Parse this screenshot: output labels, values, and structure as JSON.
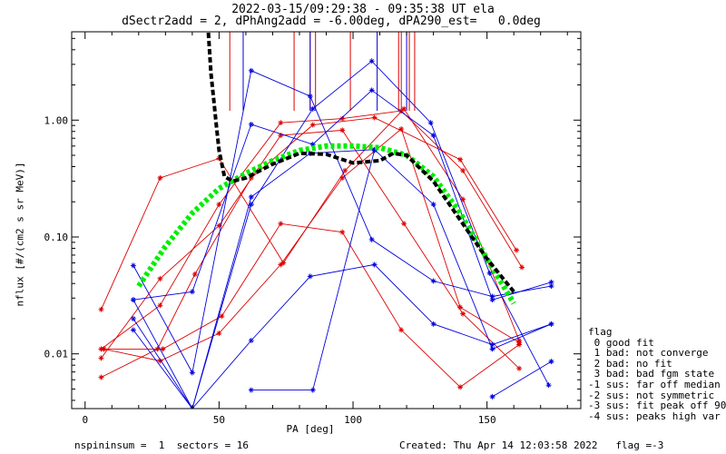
{
  "header": {
    "title_line1": "2022-03-15/09:29:38 - 09:35:38 UT ela",
    "title_line2": "dSectr2add = 2, dPhAng2add = -6.00deg, dPA290_est=   0.0deg"
  },
  "legend": {
    "title": "flag",
    "items": [
      " 0 good fit",
      " 1 bad: not converge",
      " 2 bad: no fit",
      " 3 bad: bad fgm state",
      "-1 sus: far off median",
      "-2 sus: not symmetric",
      "-3 sus: fit peak off 90",
      "-4 sus: peaks high var"
    ]
  },
  "footer": {
    "left": "nspininsum =  1  sectors = 16",
    "right": "Created: Thu Apr 14 12:03:58 2022   flag =-3"
  },
  "colors": {
    "red": "#dd0000",
    "blue": "#0000dd",
    "green": "#00ee00",
    "black": "#000000"
  },
  "chart_data": {
    "type": "line",
    "xlabel": "PA [deg]",
    "ylabel": "nflux [#/(cm2 s sr MeV)]",
    "xlim": [
      -5,
      185
    ],
    "ylim": [
      0.0034,
      5.7
    ],
    "yscale": "log",
    "xticks": [
      0,
      50,
      100,
      150
    ],
    "yticks": [
      0.01,
      0.1,
      1.0
    ],
    "ytick_labels": [
      "0.01",
      "0.10",
      "1.00"
    ],
    "red_vlines_x": [
      54,
      78,
      84,
      86,
      99,
      117,
      118,
      121,
      123
    ],
    "blue_vlines_x": [
      59,
      84,
      109,
      120
    ],
    "red_series": [
      {
        "x": [
          6,
          27,
          41,
          62,
          85,
          108,
          140,
          161
        ],
        "y": [
          0.0063,
          0.011,
          0.048,
          0.32,
          0.91,
          1.05,
          0.46,
          0.077
        ]
      },
      {
        "x": [
          6,
          28,
          50,
          73,
          96,
          118,
          141,
          163
        ],
        "y": [
          0.011,
          0.026,
          0.19,
          0.95,
          1.03,
          1.2,
          0.37,
          0.055
        ]
      },
      {
        "x": [
          6,
          28,
          50,
          74,
          97,
          119,
          141,
          162
        ],
        "y": [
          0.024,
          0.32,
          0.47,
          0.06,
          0.37,
          1.25,
          0.21,
          0.013
        ]
      },
      {
        "x": [
          6,
          28,
          50,
          73,
          96,
          119,
          141,
          162
        ],
        "y": [
          0.0092,
          0.044,
          0.125,
          0.74,
          0.82,
          0.13,
          0.022,
          0.0075
        ]
      },
      {
        "x": [
          7,
          28,
          50,
          73,
          96,
          118,
          140,
          162
        ],
        "y": [
          0.011,
          0.0087,
          0.015,
          0.058,
          0.32,
          0.84,
          0.025,
          0.0125
        ]
      },
      {
        "x": [
          7,
          29,
          51,
          73,
          96,
          118,
          140,
          162
        ],
        "y": [
          0.011,
          0.011,
          0.021,
          0.13,
          0.11,
          0.016,
          0.0052,
          0.012
        ]
      }
    ],
    "blue_series": [
      {
        "x": [
          18,
          40,
          62,
          84,
          107,
          130,
          152,
          174
        ],
        "y": [
          0.057,
          0.0069,
          2.65,
          1.6,
          0.095,
          0.042,
          0.031,
          0.038
        ]
      },
      {
        "x": [
          18,
          40,
          62,
          85,
          107,
          130,
          152,
          174
        ],
        "y": [
          0.029,
          0.034,
          0.92,
          0.62,
          1.8,
          0.74,
          0.029,
          0.041
        ]
      },
      {
        "x": [
          18,
          40,
          62,
          85,
          107,
          129,
          151,
          173
        ],
        "y": [
          0.029,
          0.0032,
          0.19,
          1.25,
          3.2,
          0.95,
          0.049,
          0.0054
        ]
      },
      {
        "x": [
          18,
          40,
          62,
          84,
          108,
          130,
          152,
          174
        ],
        "y": [
          0.016,
          0.0034,
          0.22,
          0.52,
          0.56,
          0.19,
          0.011,
          0.018
        ]
      },
      {
        "x": [
          18,
          40,
          62,
          84,
          108,
          130,
          152,
          174
        ],
        "y": [
          0.02,
          0.0034,
          0.013,
          0.046,
          0.058,
          0.018,
          0.012,
          0.018
        ]
      },
      {
        "x": [
          62,
          85,
          108
        ],
        "y": [
          0.0049,
          0.0049,
          0.55
        ]
      },
      {
        "x": [
          152,
          174
        ],
        "y": [
          0.0043,
          0.0086
        ]
      }
    ],
    "green_fit": {
      "x": [
        20,
        30,
        40,
        50,
        60,
        70,
        80,
        90,
        100,
        110,
        120,
        130,
        140,
        150,
        160
      ],
      "y": [
        0.038,
        0.083,
        0.16,
        0.26,
        0.35,
        0.45,
        0.55,
        0.6,
        0.6,
        0.58,
        0.5,
        0.33,
        0.16,
        0.065,
        0.027
      ]
    },
    "black_fit": {
      "x": [
        46,
        47,
        48,
        49,
        50,
        52,
        55,
        60,
        70,
        80,
        90,
        100,
        110,
        115,
        120,
        130,
        140,
        150,
        160
      ],
      "y": [
        5.6,
        2.5,
        1.5,
        0.9,
        0.55,
        0.33,
        0.3,
        0.32,
        0.42,
        0.52,
        0.51,
        0.43,
        0.45,
        0.52,
        0.5,
        0.3,
        0.14,
        0.065,
        0.034
      ]
    }
  }
}
